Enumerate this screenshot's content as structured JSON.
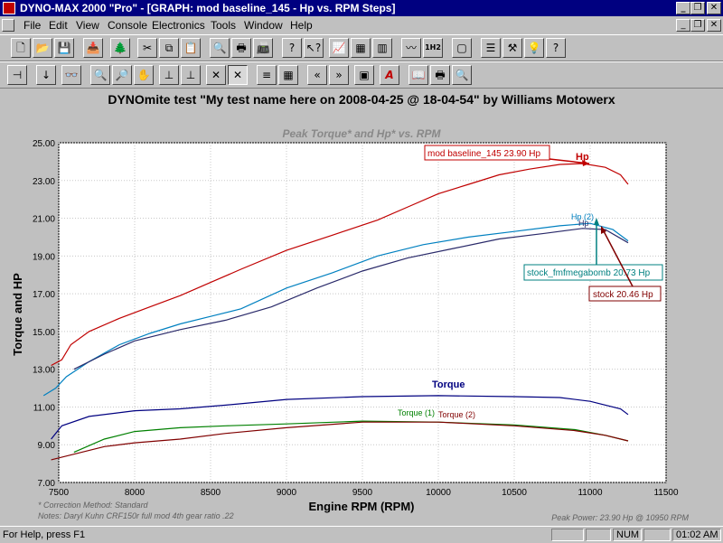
{
  "window": {
    "title": "DYNO-MAX 2000 \"Pro\" - [GRAPH: mod baseline_145 - Hp vs. RPM Steps]",
    "minimize_glyph": "_",
    "restore_glyph": "❐",
    "close_glyph": "✕"
  },
  "menu": {
    "items": [
      {
        "label": "File",
        "key": "file"
      },
      {
        "label": "Edit",
        "key": "edit"
      },
      {
        "label": "View",
        "key": "view"
      },
      {
        "label": "Console",
        "key": "console"
      },
      {
        "label": "Electronics",
        "key": "electronics"
      },
      {
        "label": "Tools",
        "key": "tools"
      },
      {
        "label": "Window",
        "key": "window"
      },
      {
        "label": "Help",
        "key": "help"
      }
    ]
  },
  "toolbar1": {
    "buttons": [
      {
        "name": "new-file-icon",
        "glyph": "🗋"
      },
      {
        "name": "open-folder-icon",
        "glyph": "📂"
      },
      {
        "name": "save-disk-icon",
        "glyph": "💾"
      },
      {
        "name": "import-icon",
        "glyph": "📥"
      },
      {
        "name": "tree-icon",
        "glyph": "🌲"
      },
      {
        "name": "cut-icon",
        "glyph": "✂"
      },
      {
        "name": "copy-icon",
        "glyph": "⧉"
      },
      {
        "name": "paste-icon",
        "glyph": "📋"
      },
      {
        "name": "print-preview-icon",
        "glyph": "🔍"
      },
      {
        "name": "print-icon",
        "glyph": "🖶"
      },
      {
        "name": "fax-icon",
        "glyph": "📠"
      },
      {
        "name": "help-question-icon",
        "glyph": "?"
      },
      {
        "name": "context-help-icon",
        "glyph": "↖?"
      },
      {
        "name": "chart-edit-icon",
        "glyph": "📈"
      },
      {
        "name": "table-icon",
        "glyph": "▦"
      },
      {
        "name": "grid-icon",
        "glyph": "▥"
      },
      {
        "name": "waveform-icon",
        "glyph": "〰"
      },
      {
        "name": "compare-1h2-icon",
        "glyph": "1H2"
      },
      {
        "name": "frame-icon",
        "glyph": "▢"
      },
      {
        "name": "settings-sliders-icon",
        "glyph": "☰"
      },
      {
        "name": "tools-hammer-icon",
        "glyph": "⚒"
      },
      {
        "name": "lightbulb-icon",
        "glyph": "💡"
      },
      {
        "name": "whats-this-icon",
        "glyph": "?"
      }
    ]
  },
  "toolbar2": {
    "buttons": [
      {
        "name": "pin-icon",
        "glyph": "⊣"
      },
      {
        "name": "marker-arrow-icon",
        "glyph": "↓"
      },
      {
        "name": "binoculars-icon",
        "glyph": "👓"
      },
      {
        "name": "zoom-icon",
        "glyph": "🔍"
      },
      {
        "name": "zoom-region-icon",
        "glyph": "🔎"
      },
      {
        "name": "hand-pan-icon",
        "glyph": "✋"
      },
      {
        "name": "stamp-icon",
        "glyph": "⊥"
      },
      {
        "name": "stamp-alt-icon",
        "glyph": "⊥"
      },
      {
        "name": "crosshair-icon",
        "glyph": "✕"
      },
      {
        "name": "crosshair-pressed-icon",
        "glyph": "✕"
      },
      {
        "name": "legend-icon",
        "glyph": "≡"
      },
      {
        "name": "table-view-icon",
        "glyph": "▦"
      },
      {
        "name": "previous-icon",
        "glyph": "«"
      },
      {
        "name": "next-icon",
        "glyph": "»"
      },
      {
        "name": "window-icon",
        "glyph": "▣"
      },
      {
        "name": "text-annotation-icon",
        "glyph": "A"
      },
      {
        "name": "book-icon",
        "glyph": "📖"
      },
      {
        "name": "print-graph-icon",
        "glyph": "🖶"
      },
      {
        "name": "preview-graph-icon",
        "glyph": "🔍"
      }
    ]
  },
  "graph": {
    "header": "DYNOmite test \"My test name here on 2008-04-25 @ 18-04-54\" by Williams Motowerx",
    "footnote_correction": "* Correction Method: Standard",
    "footnote_notes": "Notes: Daryl Kuhn CRF150r full mod 4th gear ratio .22",
    "footnote_peak": "Peak Power: 23.90 Hp @ 10950 RPM",
    "callouts": [
      {
        "text": "mod baseline_145 23.90 Hp",
        "color": "#c00000"
      },
      {
        "text": "stock_fmfmegabomb 20.73 Hp",
        "color": "#008080"
      },
      {
        "text": "stock 20.46 Hp",
        "color": "#800000"
      }
    ],
    "labels": {
      "hp": "Hp",
      "hp2": "Hp (2)",
      "hp_other": "Hp",
      "torque": "Torque",
      "torque1": "Torque (1)",
      "torque2": "Torque (2)"
    }
  },
  "chart_data": {
    "type": "line",
    "title": "Peak Torque* and Hp* vs. RPM",
    "xlabel": "Engine RPM (RPM)",
    "ylabel": "Torque and HP",
    "xlim": [
      7500,
      11500
    ],
    "ylim": [
      7.0,
      25.0
    ],
    "x_ticks": [
      "7500",
      "8000",
      "8500",
      "9000",
      "9500",
      "10000",
      "10500",
      "11000",
      "11500"
    ],
    "y_ticks": [
      "7.00",
      "9.00",
      "11.00",
      "13.00",
      "15.00",
      "17.00",
      "19.00",
      "21.00",
      "23.00",
      "25.00"
    ],
    "grid": true,
    "series": [
      {
        "name": "Hp",
        "color": "#c00000",
        "points": [
          [
            7450,
            13.2
          ],
          [
            7520,
            13.5
          ],
          [
            7580,
            14.3
          ],
          [
            7700,
            15.0
          ],
          [
            7900,
            15.7
          ],
          [
            8100,
            16.3
          ],
          [
            8300,
            16.9
          ],
          [
            8500,
            17.6
          ],
          [
            8700,
            18.3
          ],
          [
            9000,
            19.3
          ],
          [
            9300,
            20.1
          ],
          [
            9600,
            20.9
          ],
          [
            9800,
            21.6
          ],
          [
            10000,
            22.3
          ],
          [
            10200,
            22.8
          ],
          [
            10400,
            23.3
          ],
          [
            10600,
            23.6
          ],
          [
            10800,
            23.85
          ],
          [
            10950,
            23.9
          ],
          [
            11100,
            23.7
          ],
          [
            11200,
            23.3
          ],
          [
            11250,
            22.8
          ]
        ]
      },
      {
        "name": "Hp (2)",
        "color": "#0080c0",
        "points": [
          [
            7400,
            11.6
          ],
          [
            7480,
            12.0
          ],
          [
            7550,
            12.6
          ],
          [
            7700,
            13.4
          ],
          [
            7900,
            14.3
          ],
          [
            8100,
            14.9
          ],
          [
            8300,
            15.4
          ],
          [
            8500,
            15.8
          ],
          [
            8700,
            16.2
          ],
          [
            9000,
            17.3
          ],
          [
            9300,
            18.1
          ],
          [
            9600,
            19.0
          ],
          [
            9900,
            19.6
          ],
          [
            10200,
            20.0
          ],
          [
            10500,
            20.3
          ],
          [
            10800,
            20.6
          ],
          [
            11000,
            20.73
          ],
          [
            11150,
            20.4
          ],
          [
            11250,
            19.8
          ]
        ]
      },
      {
        "name": "stock",
        "color": "#2a2a6a",
        "points": [
          [
            7600,
            13.0
          ],
          [
            7800,
            13.8
          ],
          [
            8000,
            14.5
          ],
          [
            8300,
            15.1
          ],
          [
            8600,
            15.6
          ],
          [
            8900,
            16.3
          ],
          [
            9200,
            17.3
          ],
          [
            9500,
            18.2
          ],
          [
            9800,
            18.9
          ],
          [
            10100,
            19.4
          ],
          [
            10400,
            19.9
          ],
          [
            10700,
            20.2
          ],
          [
            10950,
            20.46
          ],
          [
            11100,
            20.4
          ],
          [
            11250,
            19.7
          ]
        ]
      },
      {
        "name": "Torque",
        "color": "#000080",
        "points": [
          [
            7450,
            9.3
          ],
          [
            7520,
            10.0
          ],
          [
            7700,
            10.5
          ],
          [
            8000,
            10.8
          ],
          [
            8300,
            10.9
          ],
          [
            8600,
            11.1
          ],
          [
            9000,
            11.4
          ],
          [
            9500,
            11.55
          ],
          [
            10000,
            11.6
          ],
          [
            10500,
            11.55
          ],
          [
            10800,
            11.5
          ],
          [
            11000,
            11.3
          ],
          [
            11200,
            10.9
          ],
          [
            11250,
            10.6
          ]
        ]
      },
      {
        "name": "Torque (1)",
        "color": "#008000",
        "points": [
          [
            7600,
            8.6
          ],
          [
            7800,
            9.3
          ],
          [
            8000,
            9.7
          ],
          [
            8300,
            9.9
          ],
          [
            8600,
            10.0
          ],
          [
            9000,
            10.1
          ],
          [
            9500,
            10.25
          ],
          [
            10000,
            10.2
          ],
          [
            10500,
            10.05
          ],
          [
            10900,
            9.8
          ],
          [
            11100,
            9.5
          ],
          [
            11250,
            9.2
          ]
        ]
      },
      {
        "name": "Torque (2)",
        "color": "#800000",
        "points": [
          [
            7450,
            8.2
          ],
          [
            7600,
            8.5
          ],
          [
            7800,
            8.9
          ],
          [
            8000,
            9.1
          ],
          [
            8300,
            9.3
          ],
          [
            8600,
            9.6
          ],
          [
            9000,
            9.9
          ],
          [
            9500,
            10.2
          ],
          [
            10000,
            10.2
          ],
          [
            10500,
            10.0
          ],
          [
            10900,
            9.75
          ],
          [
            11100,
            9.5
          ],
          [
            11250,
            9.2
          ]
        ]
      }
    ]
  },
  "status": {
    "help_text": "For Help, press F1",
    "num": "NUM",
    "time": "01:02 AM"
  }
}
